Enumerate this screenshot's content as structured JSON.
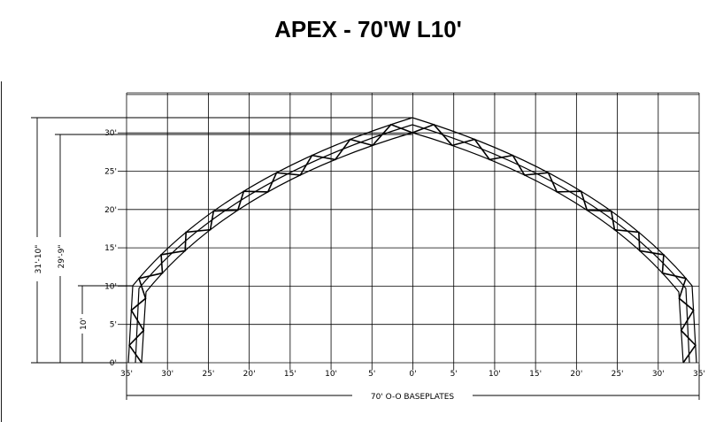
{
  "title": "APEX - 70'W L10'",
  "y_labels": [
    "0'",
    "5'",
    "10'",
    "15'",
    "20'",
    "25'",
    "30'"
  ],
  "x_labels": [
    "35'",
    "30'",
    "25'",
    "20'",
    "15'",
    "10'",
    "5'",
    "0'",
    "5'",
    "10'",
    "15'",
    "20'",
    "25'",
    "30'",
    "35'"
  ],
  "dimensions": {
    "peak_height": "31'-10\"",
    "centre_height": "29'-9\"",
    "leg_height": "10'",
    "width": "70' O-O BASEPLATES"
  }
}
